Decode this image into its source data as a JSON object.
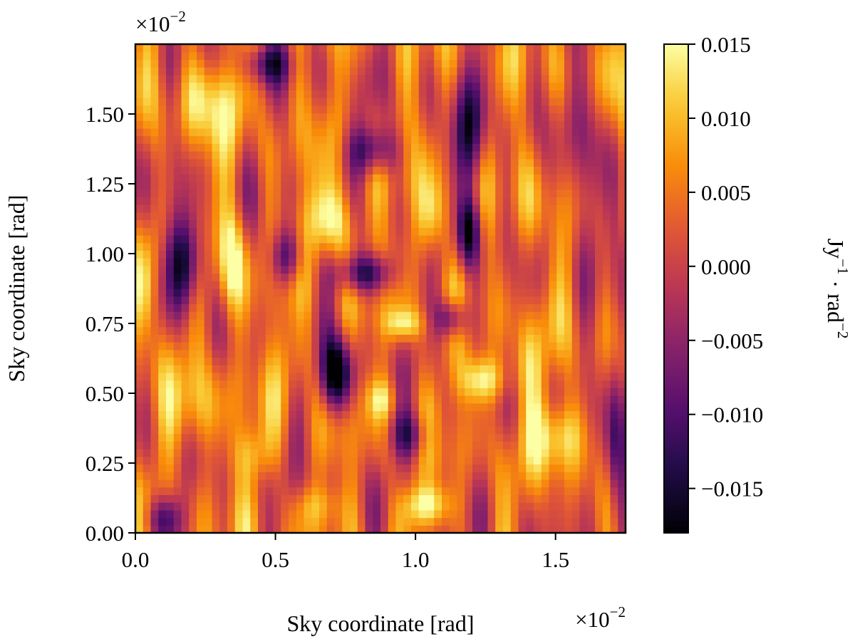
{
  "chart_data": {
    "type": "heatmap",
    "xlabel": "Sky coordinate [rad]",
    "ylabel": "Sky coordinate [rad]",
    "x_multiplier": {
      "base": "×10",
      "exp": "−2"
    },
    "y_multiplier": {
      "base": "×10",
      "exp": "−2"
    },
    "xlim": [
      0.0,
      1.75
    ],
    "ylim": [
      0.0,
      1.75
    ],
    "xticks": [
      0.0,
      0.5,
      1.0,
      1.5
    ],
    "xtick_labels": [
      "0.0",
      "0.5",
      "1.0",
      "1.5"
    ],
    "yticks": [
      0.0,
      0.25,
      0.5,
      0.75,
      1.0,
      1.25,
      1.5
    ],
    "ytick_labels": [
      "0.00",
      "0.25",
      "0.50",
      "0.75",
      "1.00",
      "1.25",
      "1.50"
    ],
    "colormap": "inferno",
    "vmin": -0.018,
    "vmax": 0.015,
    "colorbar_ticks": [
      0.015,
      0.01,
      0.005,
      0.0,
      -0.005,
      -0.01,
      -0.015
    ],
    "colorbar_tick_labels": [
      "0.015",
      "0.010",
      "0.005",
      "0.000",
      "−0.005",
      "−0.010",
      "−0.015"
    ],
    "colorbar_label": {
      "p1": "Jy",
      "e1": "−1",
      "p2": " · rad",
      "e2": "−2"
    },
    "grid": false,
    "resolution": [
      64,
      64
    ],
    "features": [
      {
        "x": 0.02,
        "y": 0.88,
        "value": 0.017,
        "sx": 0.03,
        "sy": 0.14
      },
      {
        "x": 0.18,
        "y": 0.97,
        "value": -0.019,
        "sx": 0.05,
        "sy": 0.12
      },
      {
        "x": 0.26,
        "y": 1.55,
        "value": 0.013,
        "sx": 0.07,
        "sy": 0.11
      },
      {
        "x": 0.34,
        "y": 0.95,
        "value": 0.017,
        "sx": 0.04,
        "sy": 0.14
      },
      {
        "x": 0.54,
        "y": 0.99,
        "value": -0.012,
        "sx": 0.04,
        "sy": 0.07
      },
      {
        "x": 0.7,
        "y": 1.12,
        "value": 0.018,
        "sx": 0.06,
        "sy": 0.09
      },
      {
        "x": 0.82,
        "y": 0.93,
        "value": -0.015,
        "sx": 0.07,
        "sy": 0.05
      },
      {
        "x": 0.72,
        "y": 0.57,
        "value": -0.022,
        "sx": 0.04,
        "sy": 0.09
      },
      {
        "x": 0.85,
        "y": 1.37,
        "value": -0.012,
        "sx": 0.06,
        "sy": 0.06
      },
      {
        "x": 0.96,
        "y": 0.75,
        "value": 0.014,
        "sx": 0.05,
        "sy": 0.04
      },
      {
        "x": 0.88,
        "y": 0.48,
        "value": 0.011,
        "sx": 0.04,
        "sy": 0.05
      },
      {
        "x": 1.06,
        "y": 1.13,
        "value": 0.015,
        "sx": 0.04,
        "sy": 0.11
      },
      {
        "x": 1.13,
        "y": 0.77,
        "value": -0.014,
        "sx": 0.04,
        "sy": 0.05
      },
      {
        "x": 1.19,
        "y": 1.08,
        "value": -0.017,
        "sx": 0.03,
        "sy": 0.09
      },
      {
        "x": 1.2,
        "y": 1.42,
        "value": -0.013,
        "sx": 0.04,
        "sy": 0.15
      },
      {
        "x": 1.24,
        "y": 0.55,
        "value": 0.017,
        "sx": 0.06,
        "sy": 0.06
      },
      {
        "x": 1.51,
        "y": 0.35,
        "value": 0.016,
        "sx": 0.06,
        "sy": 0.09
      },
      {
        "x": 1.04,
        "y": 0.1,
        "value": 0.016,
        "sx": 0.06,
        "sy": 0.05
      },
      {
        "x": 0.22,
        "y": 0.45,
        "value": 0.012,
        "sx": 0.05,
        "sy": 0.12
      },
      {
        "x": 1.62,
        "y": 1.3,
        "value": -0.01,
        "sx": 0.04,
        "sy": 0.22
      },
      {
        "x": 1.72,
        "y": 0.25,
        "value": -0.014,
        "sx": 0.03,
        "sy": 0.18
      },
      {
        "x": 0.42,
        "y": 0.28,
        "value": 0.01,
        "sx": 0.05,
        "sy": 0.07
      },
      {
        "x": 0.58,
        "y": 0.62,
        "value": 0.008,
        "sx": 0.05,
        "sy": 0.1
      },
      {
        "x": 1.4,
        "y": 0.62,
        "value": 0.009,
        "sx": 0.04,
        "sy": 0.12
      },
      {
        "x": 1.42,
        "y": 1.15,
        "value": 0.008,
        "sx": 0.05,
        "sy": 0.14
      },
      {
        "x": 0.98,
        "y": 0.35,
        "value": -0.01,
        "sx": 0.05,
        "sy": 0.06
      },
      {
        "x": 0.47,
        "y": 1.68,
        "value": -0.009,
        "sx": 0.06,
        "sy": 0.05
      },
      {
        "x": 0.1,
        "y": 0.05,
        "value": -0.011,
        "sx": 0.05,
        "sy": 0.06
      },
      {
        "x": 1.75,
        "y": 1.5,
        "value": 0.009,
        "sx": 0.04,
        "sy": 0.15
      },
      {
        "x": 0.65,
        "y": 0.1,
        "value": 0.009,
        "sx": 0.06,
        "sy": 0.05
      }
    ]
  }
}
